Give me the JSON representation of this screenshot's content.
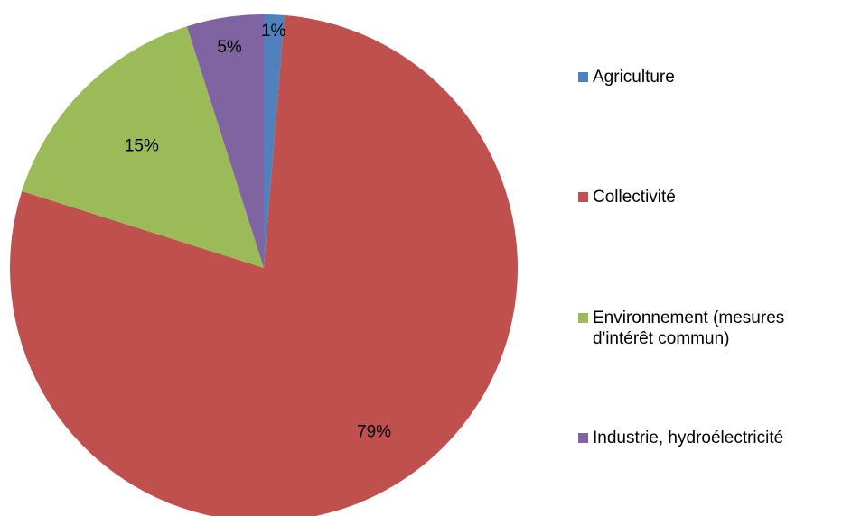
{
  "chart_data": {
    "type": "pie",
    "title": "",
    "slices": [
      {
        "label": "Agriculture",
        "value": 1.3,
        "data_label": "1%",
        "color": "#4F81BD"
      },
      {
        "label": "Collectivité",
        "value": 78.6,
        "data_label": "79%",
        "color": "#C0504D"
      },
      {
        "label": "Environnement (mesures\nd'intérêt commun)",
        "value": 15.2,
        "data_label": "15%",
        "color": "#9BBB59"
      },
      {
        "label": "Industrie, hydroélectricité",
        "value": 4.9,
        "data_label": "5%",
        "color": "#8064A2"
      }
    ],
    "start_angle_deg": 0,
    "direction": "clockwise",
    "legend_position": "right"
  }
}
